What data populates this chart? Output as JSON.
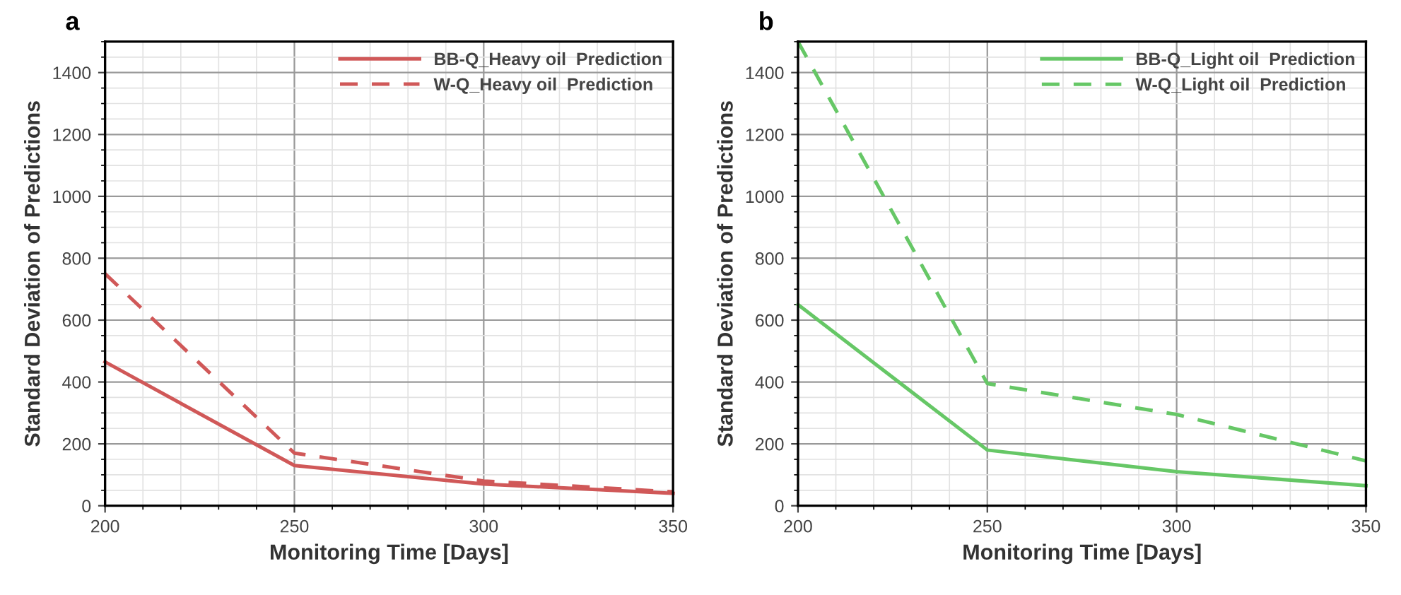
{
  "chart_data": [
    {
      "type": "line",
      "title": "a",
      "xlabel": "Monitoring Time [Days]",
      "ylabel": "Standard Deviation of Predictions",
      "x": [
        200,
        250,
        300,
        350
      ],
      "series": [
        {
          "name": "BB-Q_Heavy oil  Prediction",
          "color": "#d05858",
          "values": [
            465,
            130,
            70,
            40
          ],
          "line_style": "solid"
        },
        {
          "name": "W-Q_Heavy oil  Prediction",
          "color": "#d05858",
          "values": [
            750,
            170,
            80,
            45
          ],
          "line_style": "dashed"
        }
      ],
      "xlim": [
        200,
        350
      ],
      "xticks": [
        200,
        250,
        300,
        350
      ],
      "ylim": [
        0,
        1500
      ],
      "yticks": [
        0,
        200,
        400,
        600,
        800,
        1000,
        1200,
        1400
      ],
      "grid": true,
      "legend": "top right"
    },
    {
      "type": "line",
      "title": "b",
      "xlabel": "Monitoring Time [Days]",
      "ylabel": "Standard Deviation of Predictions",
      "x": [
        200,
        250,
        300,
        350
      ],
      "series": [
        {
          "name": "BB-Q_Light oil  Prediction",
          "color": "#66c766",
          "values": [
            650,
            180,
            110,
            65
          ],
          "line_style": "solid"
        },
        {
          "name": "W-Q_Light oil  Prediction",
          "color": "#66c766",
          "values": [
            1500,
            395,
            295,
            145
          ],
          "line_style": "dashed"
        }
      ],
      "xlim": [
        200,
        350
      ],
      "xticks": [
        200,
        250,
        300,
        350
      ],
      "ylim": [
        0,
        1500
      ],
      "yticks": [
        0,
        200,
        400,
        600,
        800,
        1000,
        1200,
        1400
      ],
      "grid": true,
      "legend": "top right"
    }
  ]
}
